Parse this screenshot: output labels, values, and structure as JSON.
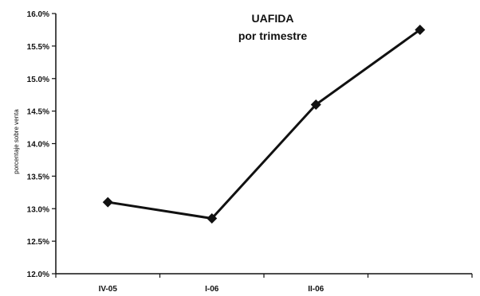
{
  "chart_data": {
    "type": "line",
    "title": "UAFIDA",
    "subtitle": "por trimestre",
    "ylabel": "porcentaje sobre venta",
    "xlabel": "",
    "categories": [
      "IV-05",
      "I-06",
      "II-06",
      ""
    ],
    "values": [
      13.1,
      12.85,
      14.6,
      15.75
    ],
    "ylim": [
      12.0,
      16.0
    ],
    "yticks": [
      12.0,
      12.5,
      13.0,
      13.5,
      14.0,
      14.5,
      15.0,
      15.5,
      16.0
    ],
    "ytick_labels": [
      "12.0%",
      "12.5%",
      "13.0%",
      "13.5%",
      "14.0%",
      "14.5%",
      "15.0%",
      "15.5%",
      "16.0%"
    ],
    "grid": false,
    "legend": "none",
    "line_color": "#111111"
  }
}
